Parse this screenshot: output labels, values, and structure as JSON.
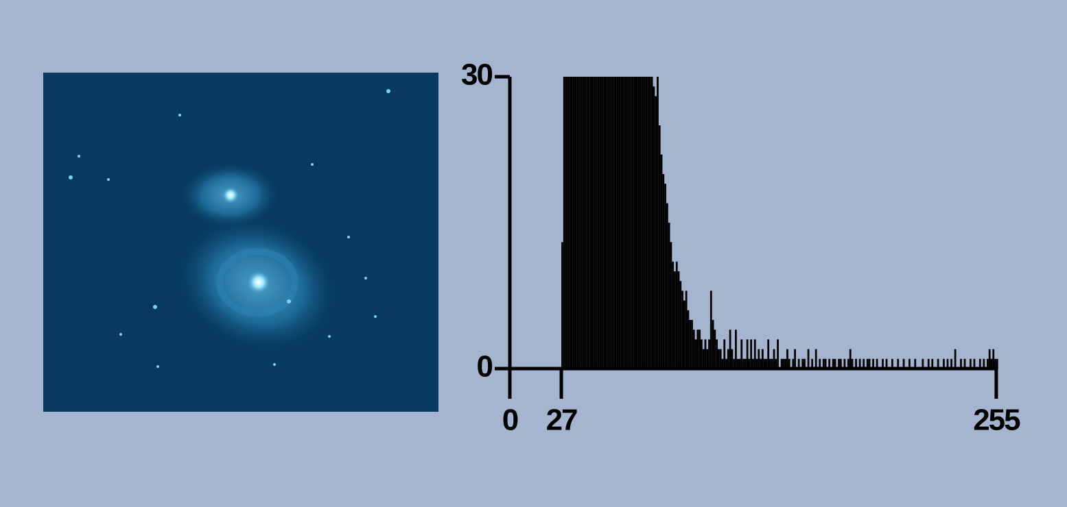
{
  "chart_data": {
    "type": "histogram",
    "color": "#000000",
    "bins": [
      0,
      1,
      2,
      3,
      4,
      5,
      6,
      7,
      8,
      9,
      10,
      11,
      12,
      13,
      14,
      15,
      16,
      17,
      18,
      19,
      20,
      21,
      22,
      23,
      24,
      25,
      26,
      27,
      28,
      29,
      30,
      31,
      32,
      33,
      34,
      35,
      36,
      37,
      38,
      39,
      40,
      41,
      42,
      43,
      44,
      45,
      46,
      47,
      48,
      49,
      50,
      51,
      52,
      53,
      54,
      55,
      56,
      57,
      58,
      59,
      60,
      61,
      62,
      63,
      64,
      65,
      66,
      67,
      68,
      69,
      70,
      71,
      72,
      73,
      74,
      75,
      76,
      77,
      78,
      79,
      80,
      81,
      82,
      83,
      84,
      85,
      86,
      87,
      88,
      89,
      90,
      91,
      92,
      93,
      94,
      95,
      96,
      97,
      98,
      99,
      100,
      101,
      102,
      103,
      104,
      105,
      106,
      107,
      108,
      109,
      110,
      111,
      112,
      113,
      114,
      115,
      116,
      117,
      118,
      119,
      120,
      121,
      122,
      123,
      124,
      125,
      126,
      127,
      128,
      129,
      130,
      131,
      132,
      133,
      134,
      135,
      136,
      137,
      138,
      139,
      140,
      141,
      142,
      143,
      144,
      145,
      146,
      147,
      148,
      149,
      150,
      151,
      152,
      153,
      154,
      155,
      156,
      157,
      158,
      159,
      160,
      161,
      162,
      163,
      164,
      165,
      166,
      167,
      168,
      169,
      170,
      171,
      172,
      173,
      174,
      175,
      176,
      177,
      178,
      179,
      180,
      181,
      182,
      183,
      184,
      185,
      186,
      187,
      188,
      189,
      190,
      191,
      192,
      193,
      194,
      195,
      196,
      197,
      198,
      199,
      200,
      201,
      202,
      203,
      204,
      205,
      206,
      207,
      208,
      209,
      210,
      211,
      212,
      213,
      214,
      215,
      216,
      217,
      218,
      219,
      220,
      221,
      222,
      223,
      224,
      225,
      226,
      227,
      228,
      229,
      230,
      231,
      232,
      233,
      234,
      235,
      236,
      237,
      238,
      239,
      240,
      241,
      242,
      243,
      244,
      245,
      246,
      247,
      248,
      249,
      250,
      251,
      252,
      253,
      254,
      255,
      256
    ],
    "counts": [
      0,
      0,
      0,
      0,
      0,
      0,
      0,
      0,
      0,
      0,
      0,
      0,
      0,
      0,
      0,
      0,
      0,
      0,
      0,
      0,
      0,
      0,
      0,
      0,
      0,
      0,
      0,
      13,
      30,
      30,
      30,
      30,
      30,
      30,
      30,
      30,
      30,
      30,
      30,
      30,
      30,
      30,
      30,
      30,
      30,
      30,
      30,
      30,
      30,
      30,
      30,
      30,
      30,
      30,
      30,
      30,
      30,
      30,
      30,
      30,
      30,
      30,
      30,
      30,
      30,
      30,
      30,
      30,
      30,
      30,
      30,
      30,
      30,
      30,
      30,
      29,
      28,
      30,
      25,
      22,
      20,
      19,
      17,
      15,
      13,
      11,
      10,
      11,
      10,
      9,
      8,
      7,
      8,
      6,
      5,
      5,
      4,
      3,
      4,
      4,
      3,
      2,
      3,
      2,
      3,
      8,
      5,
      4,
      3,
      2,
      2,
      1,
      3,
      1,
      2,
      4,
      2,
      1,
      4,
      1,
      1,
      3,
      1,
      1,
      3,
      1,
      3,
      1,
      3,
      1,
      2,
      1,
      2,
      1,
      1,
      3,
      1,
      1,
      2,
      1,
      3,
      0,
      1,
      1,
      1,
      2,
      1,
      0,
      1,
      2,
      0,
      1,
      0,
      1,
      1,
      0,
      2,
      0,
      1,
      0,
      2,
      0,
      1,
      0,
      1,
      1,
      0,
      1,
      0,
      1,
      1,
      0,
      1,
      1,
      0,
      1,
      0,
      1,
      2,
      1,
      0,
      1,
      0,
      1,
      0,
      1,
      0,
      1,
      1,
      0,
      1,
      0,
      1,
      0,
      0,
      1,
      0,
      1,
      0,
      0,
      1,
      0,
      0,
      1,
      0,
      0,
      1,
      0,
      0,
      1,
      0,
      0,
      1,
      0,
      0,
      0,
      1,
      0,
      0,
      1,
      0,
      1,
      0,
      0,
      1,
      0,
      0,
      1,
      0,
      1,
      0,
      1,
      0,
      2,
      0,
      0,
      1,
      0,
      1,
      0,
      0,
      1,
      0,
      1,
      0,
      0,
      1,
      0,
      1,
      0,
      1,
      2,
      1,
      2,
      1,
      1
    ],
    "xlim": [
      0,
      256
    ],
    "xticks": [
      0,
      27,
      255
    ],
    "ylim": [
      0,
      30
    ],
    "yticks": [
      0,
      30
    ]
  }
}
